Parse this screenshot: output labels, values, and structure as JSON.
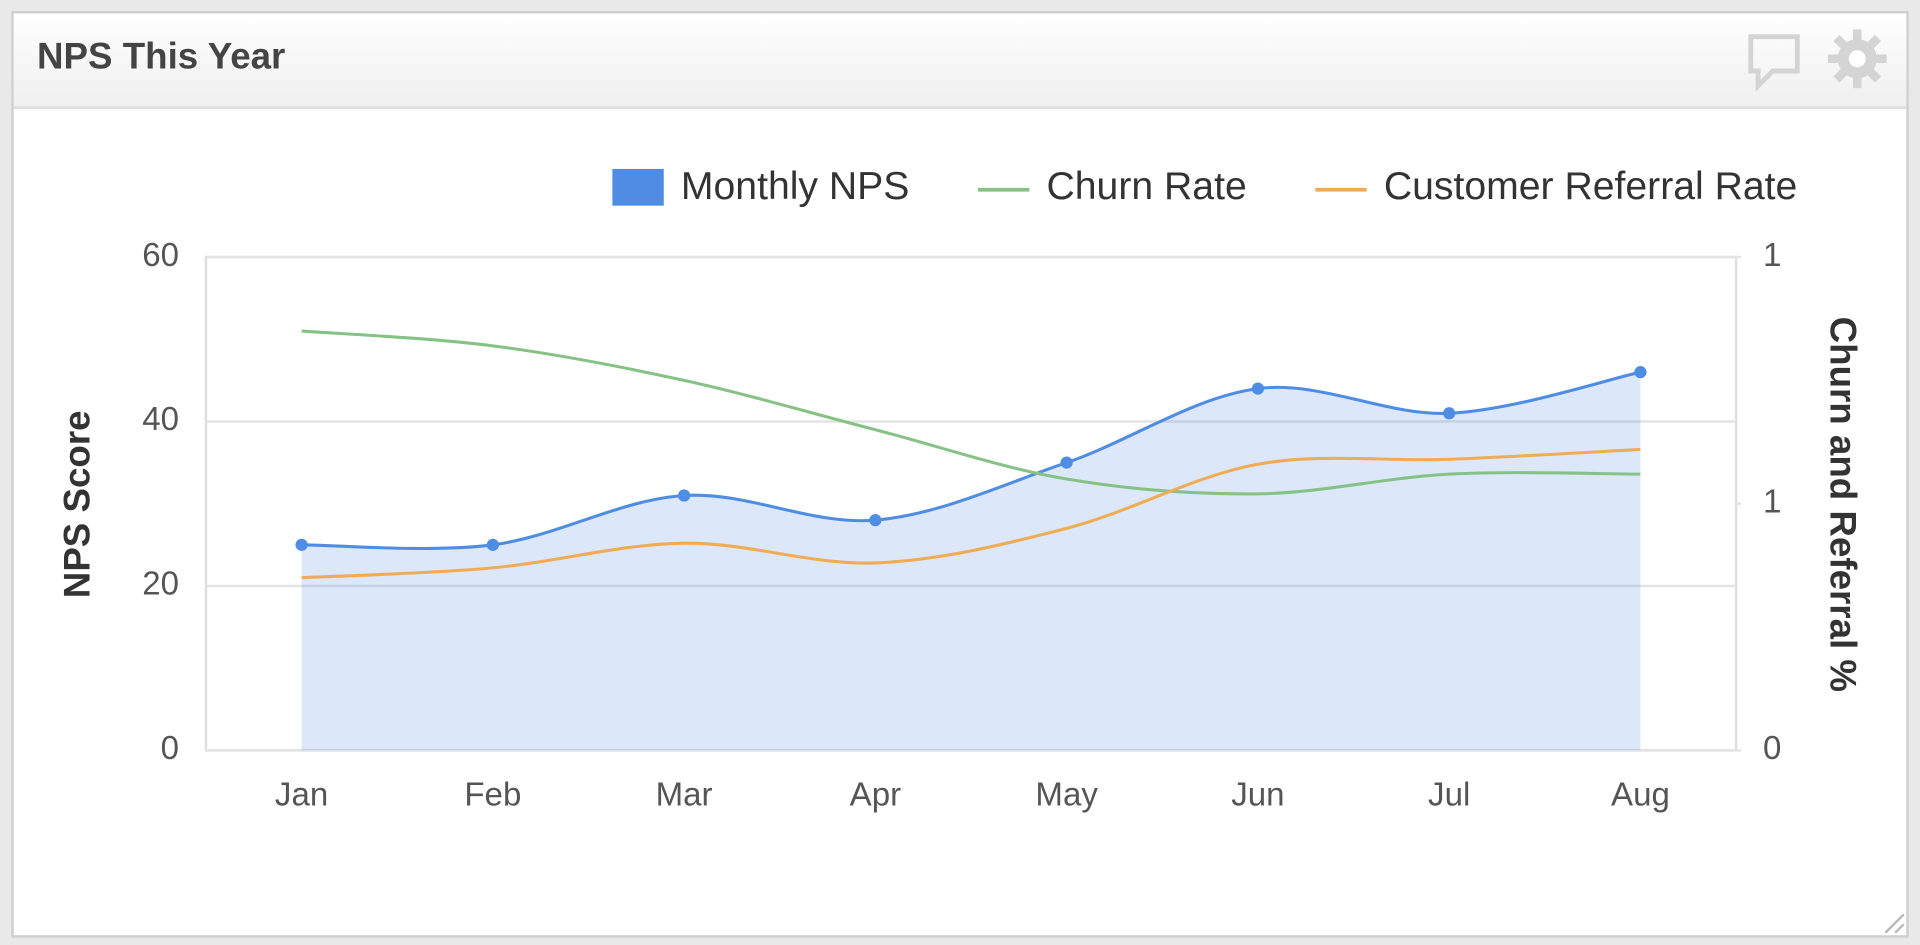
{
  "chart_data": {
    "type": "line",
    "title": "NPS This Year",
    "categories": [
      "Jan",
      "Feb",
      "Mar",
      "Apr",
      "May",
      "Jun",
      "Jul",
      "Aug"
    ],
    "series": [
      {
        "name": "Monthly NPS",
        "type": "area",
        "color": "#4f8de5",
        "values": [
          25,
          25,
          31,
          28,
          35,
          44,
          41,
          46
        ]
      },
      {
        "name": "Churn Rate",
        "color": "#86c286",
        "axis": "y2",
        "values": [
          0.85,
          0.82,
          0.75,
          0.65,
          0.55,
          0.52,
          0.56,
          0.56
        ]
      },
      {
        "name": "Customer Referral Rate",
        "color": "#f0ac54",
        "axis": "y2",
        "values": [
          0.35,
          0.37,
          0.42,
          0.38,
          0.45,
          0.58,
          0.59,
          0.61
        ]
      }
    ],
    "ylabel": "NPS Score",
    "y2label": "Churn and Referral %",
    "ylim": [
      0,
      60
    ],
    "yticks": [
      0,
      20,
      40,
      60
    ],
    "y2lim": [
      0,
      1
    ],
    "y2ticks": [
      0,
      {
        "value": 0.5,
        "label": "1"
      },
      1
    ],
    "grid": true,
    "legend": "top"
  }
}
